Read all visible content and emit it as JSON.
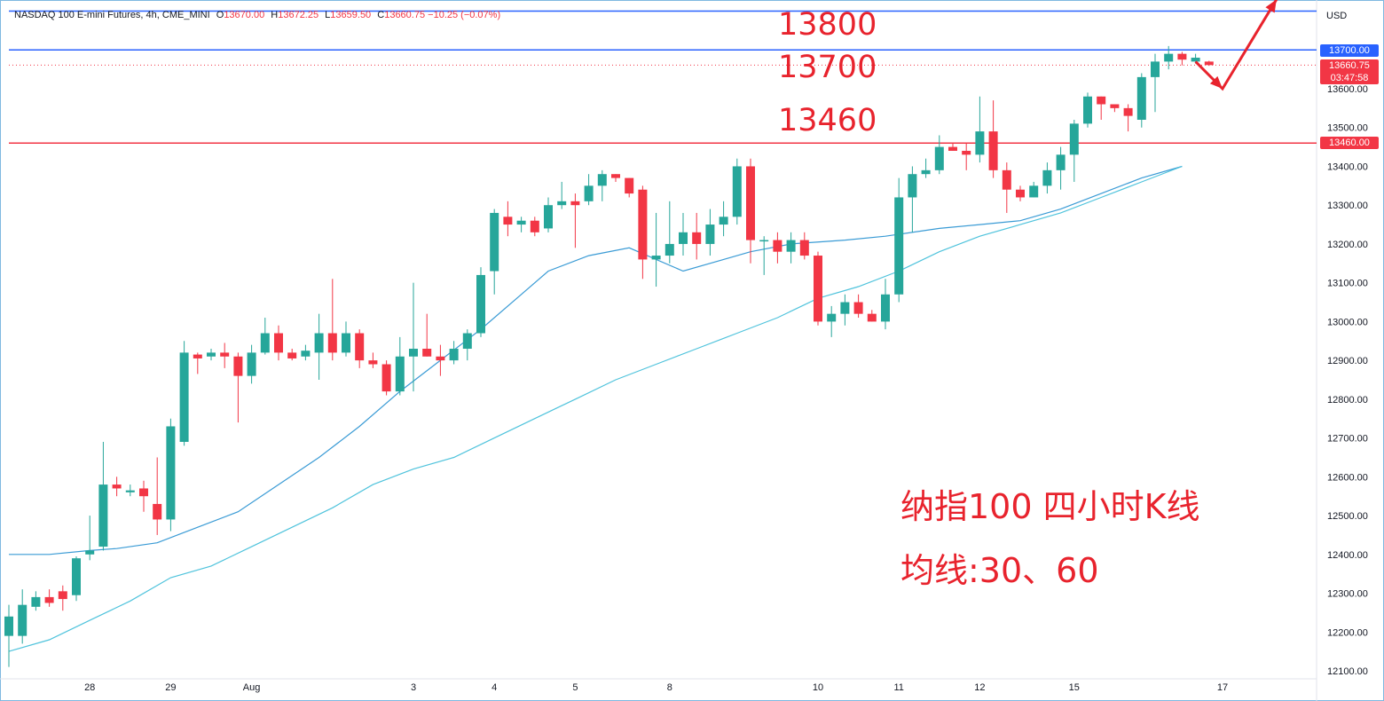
{
  "header": {
    "symbol": "NASDAQ 100 E-mini Futures, 4h, CME_MINI",
    "o_label": "O",
    "o": "13670.00",
    "h_label": "H",
    "h": "13672.25",
    "l_label": "L",
    "l": "13659.50",
    "c_label": "C",
    "c": "13660.75",
    "change": "−10.25 (−0.07%)"
  },
  "axis_currency": "USD",
  "price_tags": {
    "level_13700": "13700.00",
    "last_price": "13660.75",
    "countdown": "03:47:58",
    "level_13460": "13460.00"
  },
  "annotations": {
    "level_13800": "13800",
    "level_13700": "13700",
    "level_13460": "13460",
    "title": "纳指100 四小时K线",
    "subtitle": "均线:30、60"
  },
  "colors": {
    "up": "#26a69a",
    "down": "#f23645",
    "ma30": "#3a9bd5",
    "ma60": "#4fc3dc",
    "hline_blue": "#2962ff",
    "hline_red": "#f23645",
    "annotation": "#e8232d"
  },
  "chart_data": {
    "type": "candlestick",
    "title": "",
    "ylim": [
      12060,
      13850
    ],
    "y_ticks": [
      12100,
      12200,
      12300,
      12400,
      12500,
      12600,
      12700,
      12800,
      12900,
      13000,
      13100,
      13200,
      13300,
      13400,
      13500,
      13600
    ],
    "x_labels": [
      {
        "i": 6,
        "label": "28"
      },
      {
        "i": 12,
        "label": "29"
      },
      {
        "i": 18,
        "label": "Aug"
      },
      {
        "i": 30,
        "label": "3"
      },
      {
        "i": 36,
        "label": "4"
      },
      {
        "i": 42,
        "label": "5"
      },
      {
        "i": 49,
        "label": "8"
      },
      {
        "i": 60,
        "label": "10"
      },
      {
        "i": 66,
        "label": "11"
      },
      {
        "i": 72,
        "label": "12"
      },
      {
        "i": 79,
        "label": "15"
      },
      {
        "i": 90,
        "label": "17"
      }
    ],
    "horizontal_lines": [
      {
        "value": 13800,
        "color": "blue"
      },
      {
        "value": 13700,
        "color": "blue"
      },
      {
        "value": 13460,
        "color": "red"
      }
    ],
    "candles": [
      [
        12190,
        12240,
        12110,
        12270
      ],
      [
        12190,
        12270,
        12170,
        12310
      ],
      [
        12265,
        12290,
        12255,
        12305
      ],
      [
        12290,
        12275,
        12265,
        12310
      ],
      [
        12305,
        12285,
        12255,
        12320
      ],
      [
        12295,
        12390,
        12280,
        12395
      ],
      [
        12400,
        12410,
        12385,
        12500
      ],
      [
        12420,
        12580,
        12410,
        12690
      ],
      [
        12580,
        12570,
        12550,
        12600
      ],
      [
        12560,
        12565,
        12550,
        12580
      ],
      [
        12570,
        12550,
        12510,
        12590
      ],
      [
        12530,
        12490,
        12450,
        12650
      ],
      [
        12490,
        12730,
        12460,
        12750
      ],
      [
        12690,
        12920,
        12680,
        12950
      ],
      [
        12915,
        12905,
        12865,
        12920
      ],
      [
        12910,
        12920,
        12900,
        12930
      ],
      [
        12920,
        12910,
        12880,
        12945
      ],
      [
        12910,
        12860,
        12740,
        12920
      ],
      [
        12860,
        12920,
        12840,
        12940
      ],
      [
        12920,
        12970,
        12915,
        13010
      ],
      [
        12970,
        12920,
        12900,
        12990
      ],
      [
        12920,
        12905,
        12900,
        12930
      ],
      [
        12910,
        12925,
        12900,
        12940
      ],
      [
        12920,
        12970,
        12850,
        13020
      ],
      [
        12970,
        12920,
        12900,
        13110
      ],
      [
        12920,
        12970,
        12910,
        13000
      ],
      [
        12970,
        12900,
        12880,
        12980
      ],
      [
        12900,
        12890,
        12880,
        12920
      ],
      [
        12890,
        12820,
        12810,
        12900
      ],
      [
        12820,
        12910,
        12810,
        12960
      ],
      [
        12910,
        12930,
        12820,
        13100
      ],
      [
        12930,
        12910,
        12910,
        13020
      ],
      [
        12910,
        12900,
        12860,
        12940
      ],
      [
        12900,
        12930,
        12890,
        12950
      ],
      [
        12930,
        12970,
        12900,
        12980
      ],
      [
        12970,
        13120,
        12960,
        13140
      ],
      [
        13130,
        13280,
        13070,
        13290
      ],
      [
        13270,
        13250,
        13220,
        13310
      ],
      [
        13250,
        13260,
        13230,
        13270
      ],
      [
        13260,
        13230,
        13220,
        13270
      ],
      [
        13240,
        13300,
        13230,
        13320
      ],
      [
        13300,
        13310,
        13290,
        13360
      ],
      [
        13310,
        13300,
        13190,
        13330
      ],
      [
        13310,
        13350,
        13300,
        13380
      ],
      [
        13350,
        13380,
        13310,
        13390
      ],
      [
        13380,
        13370,
        13360,
        13380
      ],
      [
        13370,
        13330,
        13320,
        13370
      ],
      [
        13340,
        13160,
        13110,
        13350
      ],
      [
        13160,
        13170,
        13090,
        13280
      ],
      [
        13170,
        13200,
        13150,
        13310
      ],
      [
        13200,
        13230,
        13170,
        13280
      ],
      [
        13230,
        13200,
        13160,
        13280
      ],
      [
        13200,
        13250,
        13170,
        13290
      ],
      [
        13250,
        13270,
        13220,
        13310
      ],
      [
        13270,
        13400,
        13250,
        13420
      ],
      [
        13400,
        13210,
        13150,
        13420
      ],
      [
        13210,
        13210,
        13120,
        13220
      ],
      [
        13210,
        13180,
        13150,
        13230
      ],
      [
        13180,
        13210,
        13150,
        13230
      ],
      [
        13210,
        13170,
        13160,
        13230
      ],
      [
        13170,
        13000,
        12990,
        13180
      ],
      [
        13000,
        13020,
        12960,
        13040
      ],
      [
        13020,
        13050,
        12990,
        13070
      ],
      [
        13050,
        13020,
        13010,
        13070
      ],
      [
        13020,
        13000,
        13000,
        13030
      ],
      [
        13000,
        13070,
        12980,
        13110
      ],
      [
        13070,
        13320,
        13050,
        13370
      ],
      [
        13320,
        13380,
        13230,
        13400
      ],
      [
        13380,
        13390,
        13370,
        13420
      ],
      [
        13390,
        13450,
        13380,
        13480
      ],
      [
        13450,
        13440,
        13440,
        13460
      ],
      [
        13440,
        13430,
        13390,
        13460
      ],
      [
        13430,
        13490,
        13410,
        13580
      ],
      [
        13490,
        13390,
        13370,
        13570
      ],
      [
        13390,
        13340,
        13280,
        13410
      ],
      [
        13340,
        13320,
        13310,
        13350
      ],
      [
        13320,
        13350,
        13320,
        13360
      ],
      [
        13350,
        13390,
        13330,
        13410
      ],
      [
        13390,
        13430,
        13340,
        13450
      ],
      [
        13430,
        13510,
        13360,
        13520
      ],
      [
        13510,
        13580,
        13500,
        13590
      ],
      [
        13580,
        13560,
        13520,
        13580
      ],
      [
        13560,
        13550,
        13540,
        13560
      ],
      [
        13550,
        13530,
        13490,
        13560
      ],
      [
        13520,
        13630,
        13500,
        13640
      ],
      [
        13630,
        13670,
        13540,
        13690
      ],
      [
        13670,
        13690,
        13650,
        13710
      ],
      [
        13690,
        13675,
        13660,
        13695
      ],
      [
        13670,
        13680,
        13665,
        13690
      ],
      [
        13670,
        13661,
        13659,
        13672
      ]
    ],
    "series": [
      {
        "name": "30",
        "values": [
          {
            "i": 0,
            "v": 12400
          },
          {
            "i": 3,
            "v": 12400
          },
          {
            "i": 6,
            "v": 12410
          },
          {
            "i": 8,
            "v": 12415
          },
          {
            "i": 11,
            "v": 12430
          },
          {
            "i": 14,
            "v": 12470
          },
          {
            "i": 17,
            "v": 12510
          },
          {
            "i": 20,
            "v": 12580
          },
          {
            "i": 23,
            "v": 12650
          },
          {
            "i": 26,
            "v": 12730
          },
          {
            "i": 29,
            "v": 12820
          },
          {
            "i": 32,
            "v": 12900
          },
          {
            "i": 35,
            "v": 12980
          },
          {
            "i": 38,
            "v": 13070
          },
          {
            "i": 40,
            "v": 13130
          },
          {
            "i": 43,
            "v": 13170
          },
          {
            "i": 46,
            "v": 13190
          },
          {
            "i": 50,
            "v": 13130
          },
          {
            "i": 53,
            "v": 13160
          },
          {
            "i": 55,
            "v": 13180
          },
          {
            "i": 58,
            "v": 13200
          },
          {
            "i": 62,
            "v": 13210
          },
          {
            "i": 65,
            "v": 13220
          },
          {
            "i": 69,
            "v": 13240
          },
          {
            "i": 72,
            "v": 13250
          },
          {
            "i": 75,
            "v": 13260
          },
          {
            "i": 78,
            "v": 13290
          },
          {
            "i": 81,
            "v": 13330
          },
          {
            "i": 84,
            "v": 13370
          },
          {
            "i": 87,
            "v": 13400
          }
        ]
      },
      {
        "name": "60",
        "values": [
          {
            "i": 0,
            "v": 12150
          },
          {
            "i": 3,
            "v": 12180
          },
          {
            "i": 6,
            "v": 12230
          },
          {
            "i": 9,
            "v": 12280
          },
          {
            "i": 12,
            "v": 12340
          },
          {
            "i": 15,
            "v": 12370
          },
          {
            "i": 18,
            "v": 12420
          },
          {
            "i": 21,
            "v": 12470
          },
          {
            "i": 24,
            "v": 12520
          },
          {
            "i": 27,
            "v": 12580
          },
          {
            "i": 30,
            "v": 12620
          },
          {
            "i": 33,
            "v": 12650
          },
          {
            "i": 36,
            "v": 12700
          },
          {
            "i": 39,
            "v": 12750
          },
          {
            "i": 42,
            "v": 12800
          },
          {
            "i": 45,
            "v": 12850
          },
          {
            "i": 48,
            "v": 12890
          },
          {
            "i": 51,
            "v": 12930
          },
          {
            "i": 54,
            "v": 12970
          },
          {
            "i": 57,
            "v": 13010
          },
          {
            "i": 60,
            "v": 13060
          },
          {
            "i": 63,
            "v": 13090
          },
          {
            "i": 66,
            "v": 13130
          },
          {
            "i": 69,
            "v": 13180
          },
          {
            "i": 72,
            "v": 13220
          },
          {
            "i": 75,
            "v": 13250
          },
          {
            "i": 78,
            "v": 13280
          },
          {
            "i": 81,
            "v": 13320
          },
          {
            "i": 84,
            "v": 13360
          },
          {
            "i": 87,
            "v": 13400
          }
        ]
      }
    ],
    "forecast_arrow": [
      {
        "i": 88,
        "v": 13670
      },
      {
        "i": 90,
        "v": 13600
      },
      {
        "i": 94,
        "v": 13830
      }
    ]
  }
}
